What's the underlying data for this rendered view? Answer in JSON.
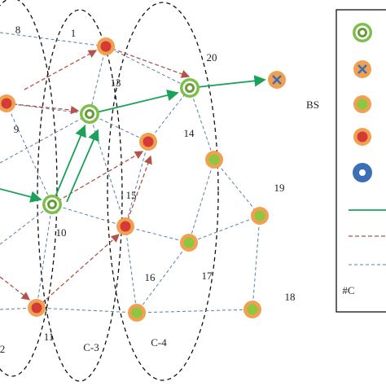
{
  "nodes": [
    {
      "label": "8"
    },
    {
      "label": "1"
    },
    {
      "label": "20"
    },
    {
      "label": "13"
    },
    {
      "label": "9"
    },
    {
      "label": "14"
    },
    {
      "label": "15"
    },
    {
      "label": "19"
    },
    {
      "label": "10"
    },
    {
      "label": "16"
    },
    {
      "label": "17"
    },
    {
      "label": "18"
    },
    {
      "label": "11"
    }
  ],
  "sink": {
    "label": "BS"
  },
  "clusters": [
    {
      "label": "2"
    },
    {
      "label": "C-3"
    },
    {
      "label": "C-4"
    }
  ],
  "legend": {
    "label": "#C"
  }
}
